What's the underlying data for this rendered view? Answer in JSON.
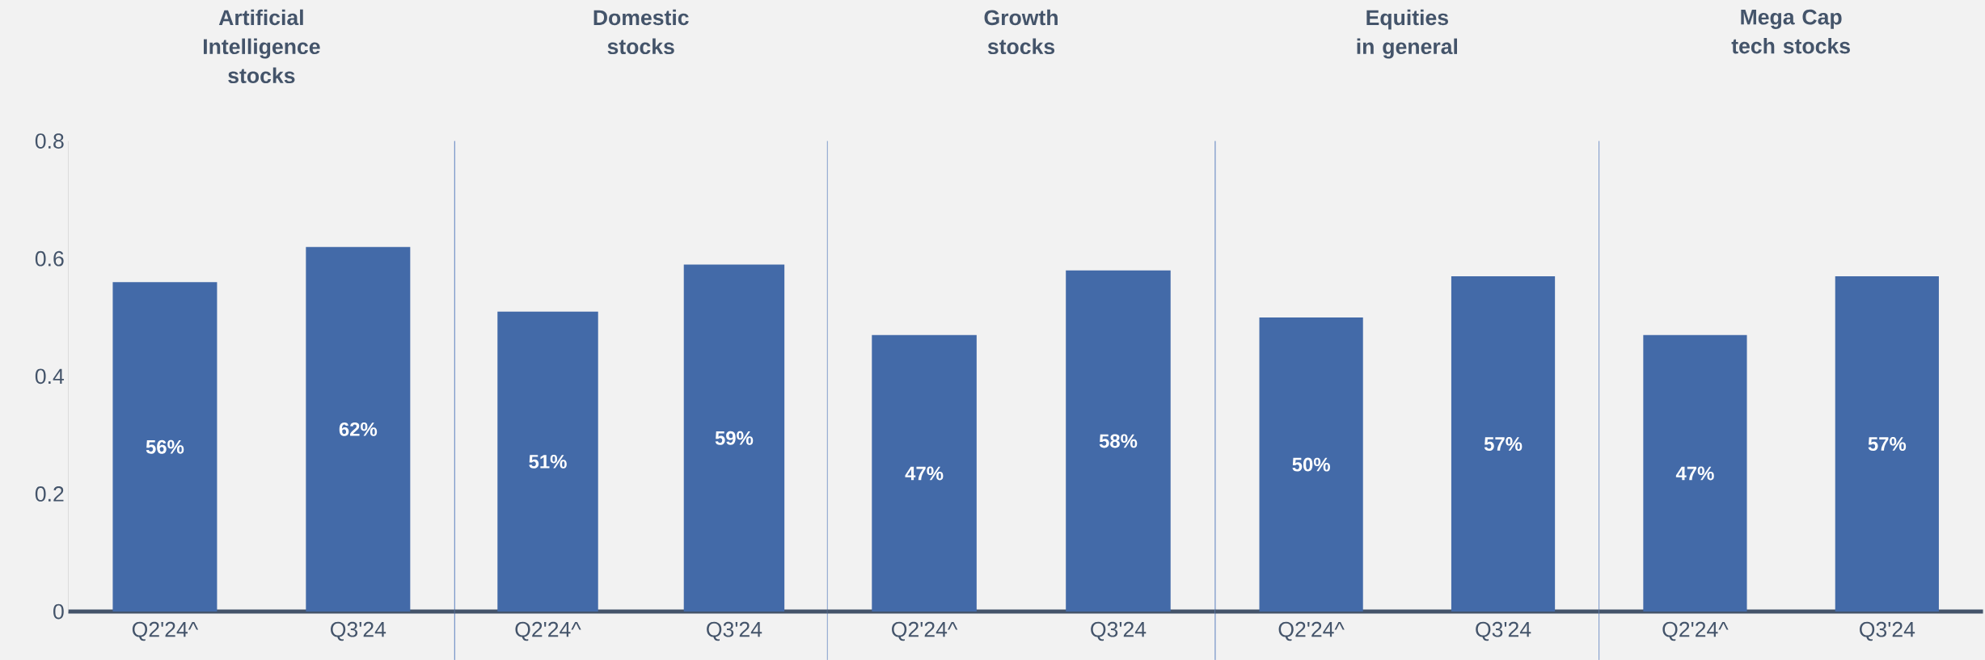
{
  "chart_data": [
    {
      "type": "bar",
      "title": "Artificial Intelligence stocks",
      "categories": [
        "Q2'24^",
        "Q3'24"
      ],
      "values": [
        0.56,
        0.62
      ],
      "value_labels": [
        "56%",
        "62%"
      ],
      "color": "#436aa8",
      "ylim": [
        0,
        0.8
      ],
      "yticks": [
        0,
        0.2,
        0.4,
        0.6,
        0.8
      ]
    },
    {
      "type": "bar",
      "title": "Domestic stocks",
      "categories": [
        "Q2'24^",
        "Q3'24"
      ],
      "values": [
        0.51,
        0.59
      ],
      "value_labels": [
        "51%",
        "59%"
      ],
      "color": "#436aa8",
      "ylim": [
        0,
        0.8
      ],
      "yticks": [
        0,
        0.2,
        0.4,
        0.6,
        0.8
      ],
      "tick_labels": "x"
    },
    {
      "type": "bar",
      "title": "Growth stocks",
      "categories": [
        "Q2'24^",
        "Q3'24"
      ],
      "values": [
        0.47,
        0.58
      ],
      "value_labels": [
        "47%",
        "58%"
      ],
      "color": "#436aa8",
      "ylim": [
        0,
        0.8
      ],
      "yticks": [
        0,
        0.2,
        0.4,
        0.6,
        0.8
      ],
      "tick_labels": "x"
    },
    {
      "type": "bar",
      "title": "Equities in general",
      "categories": [
        "Q2'24^",
        "Q3'24"
      ],
      "values": [
        0.5,
        0.57
      ],
      "value_labels": [
        "50%",
        "57%"
      ],
      "color": "#436aa8",
      "ylim": [
        0,
        0.8
      ],
      "yticks": [
        0,
        0.2,
        0.4,
        0.6,
        0.8
      ],
      "tick_labels": "x"
    },
    {
      "type": "bar",
      "title": "Mega Cap tech stocks",
      "categories": [
        "Q2'24^",
        "Q3'24"
      ],
      "values": [
        0.47,
        0.57
      ],
      "value_labels": [
        "47%",
        "57%"
      ],
      "color": "#436aa8",
      "ylim": [
        0,
        0.8
      ],
      "yticks": [
        0,
        0.2,
        0.4,
        0.6,
        0.8
      ],
      "tick_labels": "x"
    }
  ]
}
